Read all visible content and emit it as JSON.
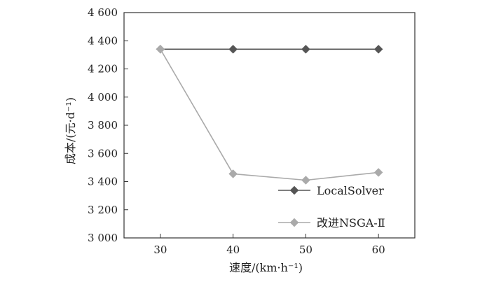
{
  "chart_data": {
    "type": "line",
    "xlabel": "速度/(km·h⁻¹)",
    "ylabel": "成本/(元·d⁻¹)",
    "x": [
      30,
      40,
      50,
      60
    ],
    "xlim": [
      25,
      65
    ],
    "ylim": [
      3000,
      4600
    ],
    "yticks": [
      3000,
      3200,
      3400,
      3600,
      3800,
      4000,
      4200,
      4400,
      4600
    ],
    "ytick_labels": [
      "3 000",
      "3 200",
      "3 400",
      "3 600",
      "3 800",
      "4 000",
      "4 200",
      "4 400",
      "4 600"
    ],
    "xtick_labels": [
      "30",
      "40",
      "50",
      "60"
    ],
    "grid": false,
    "legend_position": "bottom-right",
    "series": [
      {
        "name": "LocalSolver",
        "values": [
          4340,
          4340,
          4340,
          4340
        ],
        "color": "#555555",
        "marker": "diamond"
      },
      {
        "name": "改进NSGA-Ⅱ",
        "values": [
          4340,
          3455,
          3410,
          3465
        ],
        "color": "#aaaaaa",
        "marker": "diamond"
      }
    ]
  }
}
